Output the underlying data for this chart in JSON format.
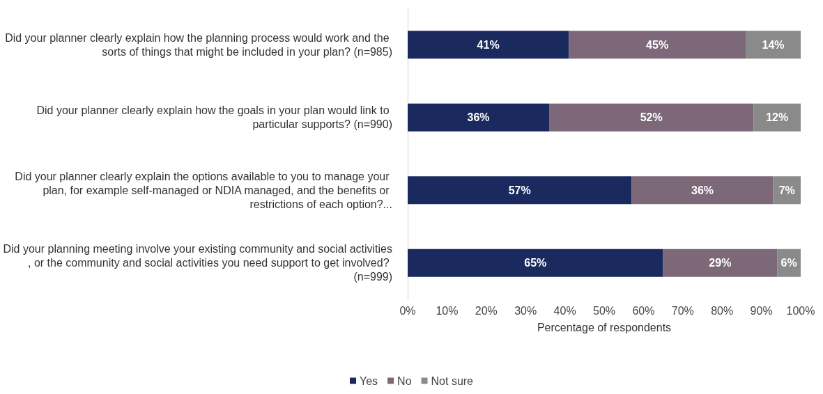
{
  "chart_data": {
    "type": "bar",
    "orientation": "horizontal",
    "stacked": true,
    "xlabel": "Percentage of respondents",
    "categories": [
      "Did your planner clearly explain how the planning process would work and the sorts of things that might be included in your plan? (n=985)",
      "Did your planner clearly explain how the goals in your plan would link to particular supports? (n=990)",
      "Did your planner clearly explain the options available to you to manage your plan, for example self-managed or NDIA managed, and the benefits or restrictions of each option?...",
      "Did your planning meeting involve your existing community and social activities, or the community and social activities you need support to get involved? (n=999)"
    ],
    "series": [
      {
        "name": "Yes",
        "color": "#1b2a5e",
        "values": [
          41,
          36,
          57,
          65
        ],
        "value_labels": [
          "41%",
          "36%",
          "57%",
          "65%"
        ]
      },
      {
        "name": "No",
        "color": "#7c6878",
        "values": [
          45,
          52,
          36,
          29
        ],
        "value_labels": [
          "45%",
          "52%",
          "36%",
          "29%"
        ]
      },
      {
        "name": "Not sure",
        "color": "#8a8a8a",
        "values": [
          14,
          12,
          7,
          6
        ],
        "value_labels": [
          "14%",
          "12%",
          "7%",
          "6%"
        ]
      }
    ],
    "xlim": [
      0,
      100
    ],
    "xticks": [
      {
        "value": 0,
        "label": "0%"
      },
      {
        "value": 10,
        "label": "10%"
      },
      {
        "value": 20,
        "label": "20%"
      },
      {
        "value": 30,
        "label": "30%"
      },
      {
        "value": 40,
        "label": "40%"
      },
      {
        "value": 50,
        "label": "50%"
      },
      {
        "value": 60,
        "label": "60%"
      },
      {
        "value": 70,
        "label": "70%"
      },
      {
        "value": 80,
        "label": "80%"
      },
      {
        "value": 90,
        "label": "90%"
      },
      {
        "value": 100,
        "label": "100%"
      }
    ],
    "grid": false,
    "legend": "bottom"
  }
}
